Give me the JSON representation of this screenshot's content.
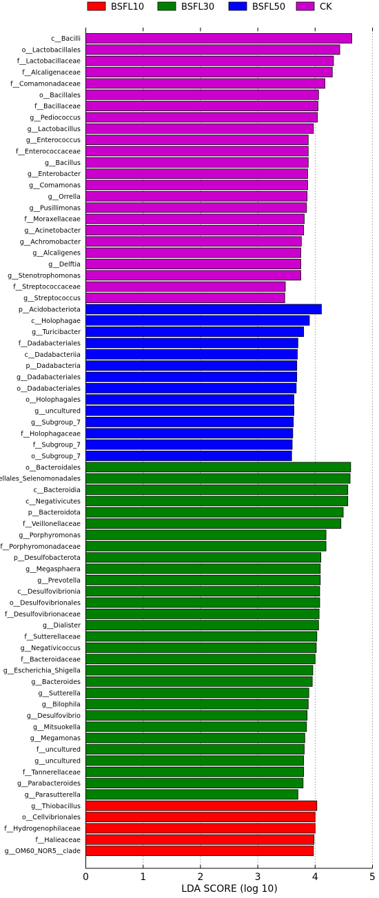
{
  "chart_data": {
    "type": "bar",
    "orientation": "horizontal",
    "title": "",
    "xlabel": "LDA SCORE (log 10)",
    "ylabel": "",
    "xlim": [
      0,
      5
    ],
    "xticks": [
      "0",
      "1",
      "2",
      "3",
      "4",
      "5"
    ],
    "grid": "vertical dashed lines at ticks",
    "legend": {
      "placement": "top",
      "entries": [
        "BSFL10",
        "BSFL30",
        "BSFL50",
        "CK"
      ]
    },
    "colors": {
      "BSFL10": "#ff0000",
      "BSFL30": "#008000",
      "BSFL50": "#0000ff",
      "CK": "#cc00cc"
    },
    "bars": [
      {
        "label": "c__Bacilli",
        "value": 4.64,
        "group": "CK"
      },
      {
        "label": "o__Lactobacillales",
        "value": 4.43,
        "group": "CK"
      },
      {
        "label": "f__Lactobacillaceae",
        "value": 4.32,
        "group": "CK"
      },
      {
        "label": "f__Alcaligenaceae",
        "value": 4.3,
        "group": "CK"
      },
      {
        "label": "f__Comamonadaceae",
        "value": 4.17,
        "group": "CK"
      },
      {
        "label": "o__Bacillales",
        "value": 4.06,
        "group": "CK"
      },
      {
        "label": "f__Bacillaceae",
        "value": 4.05,
        "group": "CK"
      },
      {
        "label": "g__Pediococcus",
        "value": 4.04,
        "group": "CK"
      },
      {
        "label": "g__Lactobacillus",
        "value": 3.97,
        "group": "CK"
      },
      {
        "label": "g__Enterococcus",
        "value": 3.88,
        "group": "CK"
      },
      {
        "label": "f__Enterococcaceae",
        "value": 3.88,
        "group": "CK"
      },
      {
        "label": "g__Bacillus",
        "value": 3.88,
        "group": "CK"
      },
      {
        "label": "g__Enterobacter",
        "value": 3.87,
        "group": "CK"
      },
      {
        "label": "g__Comamonas",
        "value": 3.87,
        "group": "CK"
      },
      {
        "label": "g__Orrella",
        "value": 3.86,
        "group": "CK"
      },
      {
        "label": "g__Pusillimonas",
        "value": 3.85,
        "group": "CK"
      },
      {
        "label": "f__Moraxellaceae",
        "value": 3.81,
        "group": "CK"
      },
      {
        "label": "g__Acinetobacter",
        "value": 3.8,
        "group": "CK"
      },
      {
        "label": "g__Achromobacter",
        "value": 3.76,
        "group": "CK"
      },
      {
        "label": "g__Alcaligenes",
        "value": 3.75,
        "group": "CK"
      },
      {
        "label": "g__Delftia",
        "value": 3.75,
        "group": "CK"
      },
      {
        "label": "g__Stenotrophomonas",
        "value": 3.75,
        "group": "CK"
      },
      {
        "label": "f__Streptococcaceae",
        "value": 3.48,
        "group": "CK"
      },
      {
        "label": "g__Streptococcus",
        "value": 3.47,
        "group": "CK"
      },
      {
        "label": "p__Acidobacteriota",
        "value": 4.11,
        "group": "BSFL50"
      },
      {
        "label": "c__Holophagae",
        "value": 3.9,
        "group": "BSFL50"
      },
      {
        "label": "g__Turicibacter",
        "value": 3.8,
        "group": "BSFL50"
      },
      {
        "label": "f__Dadabacteriales",
        "value": 3.7,
        "group": "BSFL50"
      },
      {
        "label": "c__Dadabacteriia",
        "value": 3.69,
        "group": "BSFL50"
      },
      {
        "label": "p__Dadabacteria",
        "value": 3.68,
        "group": "BSFL50"
      },
      {
        "label": "g__Dadabacteriales",
        "value": 3.68,
        "group": "BSFL50"
      },
      {
        "label": "o__Dadabacteriales",
        "value": 3.67,
        "group": "BSFL50"
      },
      {
        "label": "o__Holophagales",
        "value": 3.63,
        "group": "BSFL50"
      },
      {
        "label": "g__uncultured",
        "value": 3.63,
        "group": "BSFL50"
      },
      {
        "label": "g__Subgroup_7",
        "value": 3.62,
        "group": "BSFL50"
      },
      {
        "label": "f__Holophagaceae",
        "value": 3.61,
        "group": "BSFL50"
      },
      {
        "label": "f__Subgroup_7",
        "value": 3.6,
        "group": "BSFL50"
      },
      {
        "label": "o__Subgroup_7",
        "value": 3.59,
        "group": "BSFL50"
      },
      {
        "label": "o__Bacteroidales",
        "value": 4.62,
        "group": "BSFL30"
      },
      {
        "label": "nellales_Selenomonadales",
        "value": 4.61,
        "group": "BSFL30"
      },
      {
        "label": "c__Bacteroidia",
        "value": 4.57,
        "group": "BSFL30"
      },
      {
        "label": "c__Negativicutes",
        "value": 4.57,
        "group": "BSFL30"
      },
      {
        "label": "p__Bacteroidota",
        "value": 4.49,
        "group": "BSFL30"
      },
      {
        "label": "f__Veillonellaceae",
        "value": 4.45,
        "group": "BSFL30"
      },
      {
        "label": "g__Porphyromonas",
        "value": 4.19,
        "group": "BSFL30"
      },
      {
        "label": "f__Porphyromonadaceae",
        "value": 4.19,
        "group": "BSFL30"
      },
      {
        "label": "p__Desulfobacterota",
        "value": 4.1,
        "group": "BSFL30"
      },
      {
        "label": "g__Megasphaera",
        "value": 4.09,
        "group": "BSFL30"
      },
      {
        "label": "g__Prevotella",
        "value": 4.09,
        "group": "BSFL30"
      },
      {
        "label": "c__Desulfovibrionia",
        "value": 4.08,
        "group": "BSFL30"
      },
      {
        "label": "o__Desulfovibrionales",
        "value": 4.08,
        "group": "BSFL30"
      },
      {
        "label": "f__Desulfovibrionaceae",
        "value": 4.07,
        "group": "BSFL30"
      },
      {
        "label": "g__Dialister",
        "value": 4.06,
        "group": "BSFL30"
      },
      {
        "label": "f__Sutterellaceae",
        "value": 4.03,
        "group": "BSFL30"
      },
      {
        "label": "g__Negativicoccus",
        "value": 4.02,
        "group": "BSFL30"
      },
      {
        "label": "f__Bacteroidaceae",
        "value": 4.0,
        "group": "BSFL30"
      },
      {
        "label": "g__Escherichia_Shigella",
        "value": 3.96,
        "group": "BSFL30"
      },
      {
        "label": "g__Bacteroides",
        "value": 3.95,
        "group": "BSFL30"
      },
      {
        "label": "g__Sutterella",
        "value": 3.89,
        "group": "BSFL30"
      },
      {
        "label": "g__Bilophila",
        "value": 3.88,
        "group": "BSFL30"
      },
      {
        "label": "g__Desulfovibrio",
        "value": 3.86,
        "group": "BSFL30"
      },
      {
        "label": "g__Mitsuokella",
        "value": 3.85,
        "group": "BSFL30"
      },
      {
        "label": "g__Megamonas",
        "value": 3.82,
        "group": "BSFL30"
      },
      {
        "label": "f__uncultured",
        "value": 3.81,
        "group": "BSFL30"
      },
      {
        "label": "g__uncultured",
        "value": 3.8,
        "group": "BSFL30"
      },
      {
        "label": "f__Tannerellaceae",
        "value": 3.8,
        "group": "BSFL30"
      },
      {
        "label": "g__Parabacteroides",
        "value": 3.79,
        "group": "BSFL30"
      },
      {
        "label": "g__Parasutterella",
        "value": 3.7,
        "group": "BSFL30"
      },
      {
        "label": "g__Thiobacillus",
        "value": 4.03,
        "group": "BSFL10"
      },
      {
        "label": "o__Cellvibrionales",
        "value": 4.0,
        "group": "BSFL10"
      },
      {
        "label": "f__Hydrogenophilaceae",
        "value": 4.0,
        "group": "BSFL10"
      },
      {
        "label": "f__Halieaceae",
        "value": 3.98,
        "group": "BSFL10"
      },
      {
        "label": "g__OM60_NOR5__clade",
        "value": 3.97,
        "group": "BSFL10"
      }
    ]
  }
}
